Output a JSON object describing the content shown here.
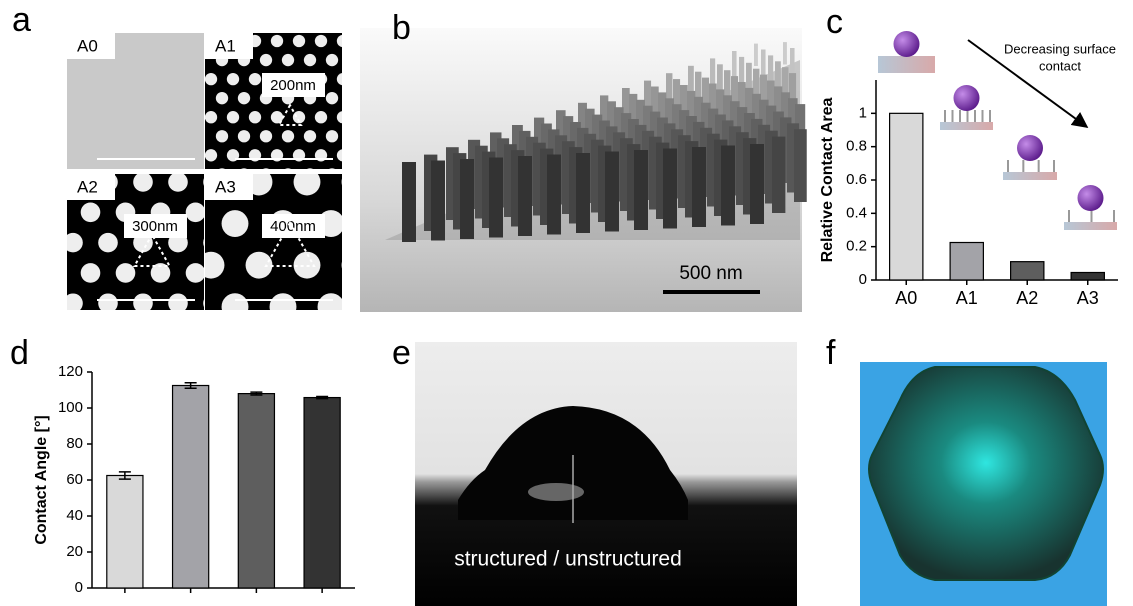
{
  "panel_letters": [
    "a",
    "b",
    "c",
    "d",
    "e",
    "f"
  ],
  "figure_a": {
    "tiles": [
      {
        "label": "A0"
      },
      {
        "label": "A1",
        "pitch": "200nm"
      },
      {
        "label": "A2",
        "pitch": "300nm"
      },
      {
        "label": "A3",
        "pitch": "400nm"
      }
    ]
  },
  "figure_b": {
    "scale_bar": "500 nm"
  },
  "figure_e": {
    "caption": "structured / unstructured"
  },
  "chart_data": [
    {
      "type": "bar",
      "y_label": "Relative Contact Area",
      "annotation": [
        "Decreasing surface",
        "contact"
      ],
      "categories": [
        "A0",
        "A1",
        "A2",
        "A3"
      ],
      "values": [
        1,
        0.225,
        0.11,
        0.045
      ],
      "colors": [
        "#d9d9d9",
        "#a3a3a8",
        "#5e5e5e",
        "#333333"
      ],
      "ylim": [
        0,
        1.2
      ],
      "yticks": [
        0,
        0.2,
        0.4,
        0.6,
        0.8,
        1
      ]
    },
    {
      "type": "bar",
      "y_label": "Contact Angle [°]",
      "categories": [
        null,
        null,
        null,
        null
      ],
      "values": [
        62.5,
        112.5,
        108,
        105.8
      ],
      "errors": [
        2,
        1.5,
        0.8,
        0.6
      ],
      "colors": [
        "#d9d9d9",
        "#a3a3a8",
        "#5e5e5e",
        "#333333"
      ],
      "ylim": [
        0,
        120
      ],
      "yticks": [
        0,
        20,
        40,
        60,
        80,
        100,
        120
      ]
    }
  ]
}
